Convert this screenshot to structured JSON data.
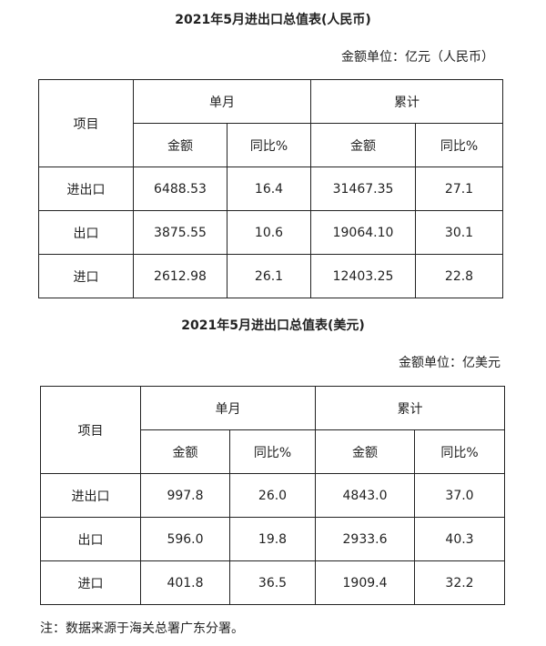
{
  "tables": [
    {
      "title": "2021年5月进出口总值表(人民币)",
      "unit": "金额单位：亿元（人民币）",
      "header": {
        "item": "项目",
        "month": "单月",
        "cumulative": "累计",
        "amount": "金额",
        "yoy": "同比%"
      },
      "rows": [
        {
          "name": "进出口",
          "m_amount": "6488.53",
          "m_yoy": "16.4",
          "c_amount": "31467.35",
          "c_yoy": "27.1"
        },
        {
          "name": "出口",
          "m_amount": "3875.55",
          "m_yoy": "10.6",
          "c_amount": "19064.10",
          "c_yoy": "30.1"
        },
        {
          "name": "进口",
          "m_amount": "2612.98",
          "m_yoy": "26.1",
          "c_amount": "12403.25",
          "c_yoy": "22.8"
        }
      ]
    },
    {
      "title": "2021年5月进出口总值表(美元)",
      "unit": "金额单位：亿美元",
      "header": {
        "item": "项目",
        "month": "单月",
        "cumulative": "累计",
        "amount": "金额",
        "yoy": "同比%"
      },
      "rows": [
        {
          "name": "进出口",
          "m_amount": "997.8",
          "m_yoy": "26.0",
          "c_amount": "4843.0",
          "c_yoy": "37.0"
        },
        {
          "name": "出口",
          "m_amount": "596.0",
          "m_yoy": "19.8",
          "c_amount": "2933.6",
          "c_yoy": "40.3"
        },
        {
          "name": "进口",
          "m_amount": "401.8",
          "m_yoy": "36.5",
          "c_amount": "1909.4",
          "c_yoy": "32.2"
        }
      ]
    }
  ],
  "note": "注：数据来源于海关总署广东分署。"
}
